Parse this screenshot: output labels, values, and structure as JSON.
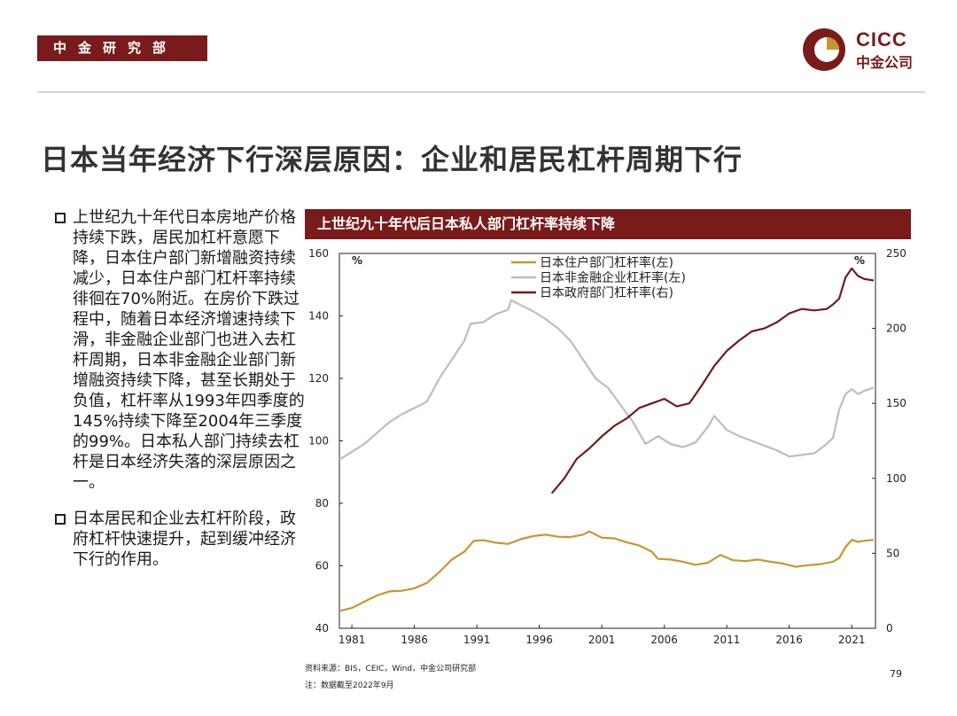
{
  "header": {
    "dept": "中金研究部",
    "logo_en": "CICC",
    "logo_cn": "中金公司"
  },
  "page_title": "日本当年经济下行深层原因：企业和居民杠杆周期下行",
  "bullets": [
    "上世纪九十年代日本房地产价格持续下跌，居民加杠杆意愿下降，日本住户部门新增融资持续减少，日本住户部门杠杆率持续徘徊在70%附近。在房价下跌过程中，随着日本经济增速持续下滑，非金融企业部门也进入去杠杆周期，日本非金融企业部门新增融资持续下降，甚至长期处于负值，杠杆率从1993年四季度的145%持续下降至2004年三季度的99%。日本私人部门持续去杠杆是日本经济失落的深层原因之一。",
    "日本居民和企业去杠杆阶段，政府杠杆快速提升，起到缓冲经济下行的作用。"
  ],
  "chart_header": "上世纪九十年代后日本私人部门杠杆率持续下降",
  "footer": {
    "source": "资料来源：BIS，CEIC，Wind，中金公司研究部",
    "note": "注：数据截至2022年9月",
    "page": "79"
  },
  "colors": {
    "brand": "#7a1b1b",
    "household": "#c99530",
    "corporate": "#bdbdbd",
    "government": "#6e1c1c"
  },
  "chart_data": {
    "type": "line",
    "title": "上世纪九十年代后日本私人部门杠杆率持续下降",
    "x_ticks": [
      "1981",
      "1986",
      "1991",
      "1996",
      "2001",
      "2006",
      "2011",
      "2016",
      "2021"
    ],
    "xlim": [
      1980.0,
      2022.9
    ],
    "y_left": {
      "unit": "%",
      "ylim": [
        40,
        160
      ],
      "ticks": [
        "40",
        "60",
        "80",
        "100",
        "120",
        "140",
        "160"
      ]
    },
    "y_right": {
      "unit": "%",
      "ylim": [
        0,
        250
      ],
      "ticks": [
        "0",
        "50",
        "100",
        "150",
        "200",
        "250"
      ]
    },
    "legend_position": "top-center",
    "series": [
      {
        "name": "日本住户部门杠杆率(左)",
        "axis": "left",
        "color": "#c99530",
        "points": [
          [
            1980.0,
            45.5
          ],
          [
            1981.0,
            46.5
          ],
          [
            1982.0,
            48.5
          ],
          [
            1983.0,
            50.5
          ],
          [
            1984.0,
            51.8
          ],
          [
            1985.0,
            52.0
          ],
          [
            1986.0,
            52.8
          ],
          [
            1987.0,
            54.5
          ],
          [
            1988.0,
            58.0
          ],
          [
            1989.0,
            62.0
          ],
          [
            1990.0,
            64.5
          ],
          [
            1990.75,
            68.0
          ],
          [
            1991.5,
            68.2
          ],
          [
            1992.5,
            67.4
          ],
          [
            1993.5,
            67.0
          ],
          [
            1994.5,
            68.5
          ],
          [
            1995.5,
            69.5
          ],
          [
            1996.5,
            70.0
          ],
          [
            1997.5,
            69.3
          ],
          [
            1998.5,
            69.2
          ],
          [
            1999.5,
            70.0
          ],
          [
            2000.0,
            71.0
          ],
          [
            2001.0,
            69.0
          ],
          [
            2002.0,
            68.8
          ],
          [
            2003.0,
            67.5
          ],
          [
            2004.0,
            66.5
          ],
          [
            2005.0,
            64.5
          ],
          [
            2005.5,
            62.2
          ],
          [
            2006.5,
            62.0
          ],
          [
            2007.5,
            61.3
          ],
          [
            2008.5,
            60.3
          ],
          [
            2009.5,
            61.0
          ],
          [
            2010.5,
            63.5
          ],
          [
            2011.5,
            61.8
          ],
          [
            2012.5,
            61.5
          ],
          [
            2013.5,
            62.0
          ],
          [
            2014.5,
            61.3
          ],
          [
            2015.5,
            60.7
          ],
          [
            2016.5,
            59.7
          ],
          [
            2017.5,
            60.2
          ],
          [
            2018.5,
            60.5
          ],
          [
            2019.5,
            61.3
          ],
          [
            2020.0,
            62.5
          ],
          [
            2020.5,
            66.0
          ],
          [
            2021.0,
            68.3
          ],
          [
            2021.5,
            67.7
          ],
          [
            2022.0,
            68.0
          ],
          [
            2022.75,
            68.3
          ]
        ]
      },
      {
        "name": "日本非金融企业杠杆率(左)",
        "axis": "left",
        "color": "#bdbdbd",
        "points": [
          [
            1980.0,
            94.0
          ],
          [
            1981.0,
            96.5
          ],
          [
            1982.0,
            99.0
          ],
          [
            1983.0,
            102.5
          ],
          [
            1984.0,
            106.0
          ],
          [
            1985.0,
            108.5
          ],
          [
            1986.0,
            110.5
          ],
          [
            1987.0,
            112.5
          ],
          [
            1988.0,
            120.0
          ],
          [
            1989.0,
            126.0
          ],
          [
            1990.0,
            132.0
          ],
          [
            1990.5,
            137.5
          ],
          [
            1991.5,
            138.0
          ],
          [
            1992.5,
            140.5
          ],
          [
            1993.5,
            142.0
          ],
          [
            1993.75,
            145.0
          ],
          [
            1994.5,
            143.5
          ],
          [
            1995.5,
            141.5
          ],
          [
            1996.5,
            139.0
          ],
          [
            1997.5,
            136.0
          ],
          [
            1998.5,
            132.0
          ],
          [
            1999.5,
            126.0
          ],
          [
            2000.5,
            120.0
          ],
          [
            2001.5,
            117.0
          ],
          [
            2002.5,
            111.5
          ],
          [
            2003.5,
            106.0
          ],
          [
            2004.5,
            99.0
          ],
          [
            2005.5,
            101.5
          ],
          [
            2006.5,
            99.0
          ],
          [
            2007.5,
            98.0
          ],
          [
            2008.5,
            99.5
          ],
          [
            2009.5,
            104.5
          ],
          [
            2010.0,
            108.0
          ],
          [
            2011.0,
            103.5
          ],
          [
            2012.0,
            101.5
          ],
          [
            2013.0,
            100.0
          ],
          [
            2014.0,
            98.5
          ],
          [
            2015.0,
            97.0
          ],
          [
            2016.0,
            95.0
          ],
          [
            2017.0,
            95.5
          ],
          [
            2018.0,
            96.0
          ],
          [
            2019.0,
            99.0
          ],
          [
            2019.5,
            101.0
          ],
          [
            2020.0,
            110.0
          ],
          [
            2020.5,
            115.0
          ],
          [
            2021.0,
            116.5
          ],
          [
            2021.5,
            115.0
          ],
          [
            2022.0,
            116.0
          ],
          [
            2022.75,
            117.0
          ]
        ]
      },
      {
        "name": "日本政府部门杠杆率(右)",
        "axis": "right",
        "color": "#6e1c1c",
        "points": [
          [
            1997.0,
            90.0
          ],
          [
            1998.0,
            100.0
          ],
          [
            1999.0,
            113.0
          ],
          [
            2000.0,
            120.0
          ],
          [
            2001.0,
            128.0
          ],
          [
            2002.0,
            135.0
          ],
          [
            2003.0,
            140.0
          ],
          [
            2004.0,
            147.0
          ],
          [
            2005.0,
            150.0
          ],
          [
            2006.0,
            153.0
          ],
          [
            2007.0,
            148.0
          ],
          [
            2008.0,
            150.0
          ],
          [
            2009.0,
            162.0
          ],
          [
            2010.0,
            175.0
          ],
          [
            2011.0,
            185.0
          ],
          [
            2012.0,
            192.0
          ],
          [
            2013.0,
            198.0
          ],
          [
            2014.0,
            200.0
          ],
          [
            2015.0,
            204.0
          ],
          [
            2016.0,
            210.0
          ],
          [
            2017.0,
            213.0
          ],
          [
            2018.0,
            212.0
          ],
          [
            2019.0,
            213.0
          ],
          [
            2019.5,
            216.0
          ],
          [
            2020.0,
            220.0
          ],
          [
            2020.5,
            234.0
          ],
          [
            2021.0,
            240.0
          ],
          [
            2021.5,
            235.0
          ],
          [
            2022.0,
            233.0
          ],
          [
            2022.75,
            232.0
          ]
        ]
      }
    ]
  }
}
